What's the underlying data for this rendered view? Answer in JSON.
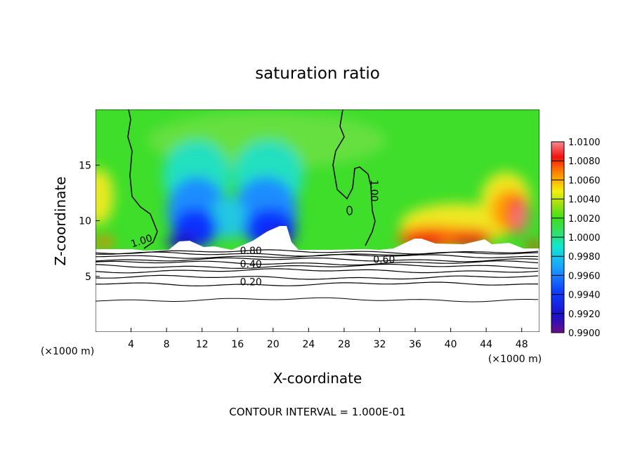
{
  "chart_data": {
    "type": "heatmap",
    "title": "saturation ratio",
    "xlabel": "X-coordinate",
    "ylabel": "Z-coordinate",
    "x_unit": "(×1000 m)",
    "x_unit_right": "(×1000 m)",
    "xlim": [
      0,
      50
    ],
    "ylim": [
      0,
      20
    ],
    "x_ticks": [
      4,
      8,
      12,
      16,
      20,
      24,
      28,
      32,
      36,
      40,
      44,
      48
    ],
    "y_ticks": [
      5,
      10,
      15
    ],
    "footer": "CONTOUR INTERVAL = 1.000E-01",
    "colorbar": {
      "ticks": [
        "1.0100",
        "1.0080",
        "1.0060",
        "1.0040",
        "1.0020",
        "1.0000",
        "0.9980",
        "0.9960",
        "0.9940",
        "0.9920",
        "0.9900"
      ],
      "range": [
        0.99,
        1.01
      ]
    },
    "contour_labels": [
      {
        "text": "1.00",
        "x": 5.3,
        "y": 7.9
      },
      {
        "text": "1.00",
        "x": 31.0,
        "y": 12.7
      },
      {
        "text": "0.80",
        "x": 17.5,
        "y": 7.0
      },
      {
        "text": "0.60",
        "x": 32.5,
        "y": 6.2
      },
      {
        "text": "0.40",
        "x": 17.5,
        "y": 5.8
      },
      {
        "text": "0.20",
        "x": 17.5,
        "y": 4.2
      }
    ],
    "surface_levels": [
      7.2,
      7.0,
      6.8,
      6.5,
      6.2,
      5.9,
      5.5,
      4.9,
      4.3,
      2.9
    ]
  }
}
